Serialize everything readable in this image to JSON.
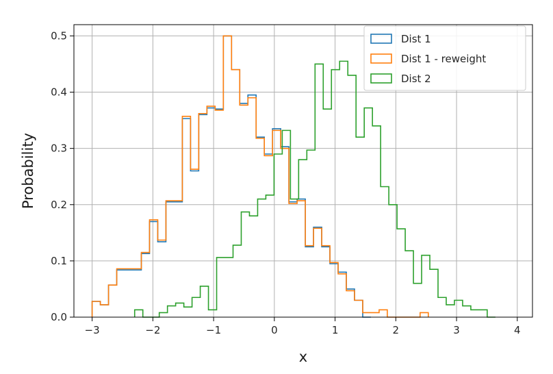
{
  "chart_data": {
    "type": "step-histogram",
    "xlabel": "x",
    "ylabel": "Probability",
    "xlim": [
      -3.3,
      4.25
    ],
    "ylim": [
      0,
      0.52
    ],
    "x_ticks": [
      -3,
      -2,
      -1,
      0,
      1,
      2,
      3,
      4
    ],
    "x_tick_labels": [
      "−3",
      "−2",
      "−1",
      "0",
      "1",
      "2",
      "3",
      "4"
    ],
    "y_ticks": [
      0.0,
      0.1,
      0.2,
      0.3,
      0.4,
      0.5
    ],
    "y_tick_labels": [
      "0.0",
      "0.1",
      "0.2",
      "0.3",
      "0.4",
      "0.5"
    ],
    "grid": true,
    "legend": {
      "position": "top-right",
      "entries": [
        "Dist 1",
        "Dist 1 - reweight",
        "Dist 2"
      ]
    },
    "series": [
      {
        "name": "Dist 1",
        "color": "#1f77b4",
        "bin_width": 0.135,
        "start": -3.0,
        "values": [
          0.028,
          0.022,
          0.057,
          0.084,
          0.084,
          0.084,
          0.113,
          0.17,
          0.134,
          0.205,
          0.205,
          0.353,
          0.26,
          0.36,
          0.372,
          0.37,
          0.5,
          0.44,
          0.38,
          0.395,
          0.32,
          0.29,
          0.335,
          0.303,
          0.205,
          0.21,
          0.125,
          0.16,
          0.125,
          0.095,
          0.08,
          0.05,
          0.03,
          0.0
        ]
      },
      {
        "name": "Dist 1 - reweight",
        "color": "#ff7f0e",
        "bin_width": 0.135,
        "start": -3.0,
        "values": [
          0.028,
          0.022,
          0.057,
          0.086,
          0.086,
          0.086,
          0.115,
          0.173,
          0.137,
          0.207,
          0.207,
          0.357,
          0.263,
          0.362,
          0.375,
          0.368,
          0.5,
          0.44,
          0.377,
          0.39,
          0.318,
          0.287,
          0.332,
          0.3,
          0.202,
          0.207,
          0.127,
          0.158,
          0.127,
          0.097,
          0.077,
          0.047,
          0.03,
          0.008,
          0.008,
          0.013,
          0.0,
          0.0,
          0.0,
          0.0,
          0.008
        ]
      },
      {
        "name": "Dist 2",
        "color": "#2ca02c",
        "bin_width": 0.135,
        "start": -2.3,
        "values": [
          0.013,
          0.0,
          0.0,
          0.008,
          0.02,
          0.025,
          0.018,
          0.035,
          0.055,
          0.013,
          0.106,
          0.106,
          0.128,
          0.187,
          0.18,
          0.21,
          0.217,
          0.29,
          0.332,
          0.21,
          0.28,
          0.297,
          0.45,
          0.37,
          0.44,
          0.455,
          0.43,
          0.32,
          0.372,
          0.34,
          0.232,
          0.2,
          0.157,
          0.118,
          0.06,
          0.11,
          0.085,
          0.035,
          0.022,
          0.03,
          0.02,
          0.013,
          0.013,
          0.0
        ]
      }
    ]
  }
}
